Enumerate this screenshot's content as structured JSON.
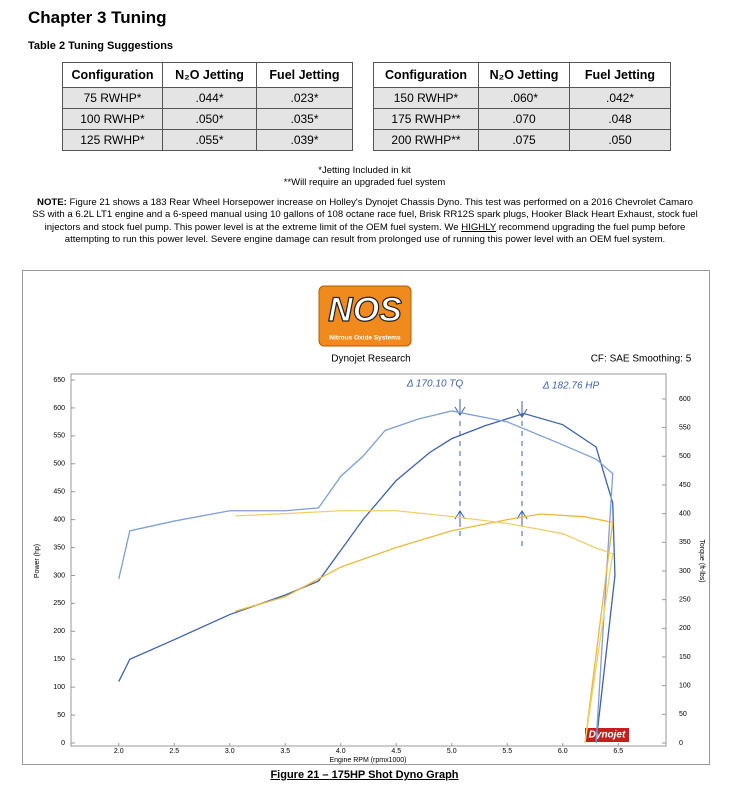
{
  "heading": "Chapter 3 Tuning",
  "table": {
    "title": "Table 2 Tuning Suggestions",
    "header": [
      "Configuration",
      "N₂O Jetting",
      "Fuel Jetting",
      "Configuration",
      "N₂O Jetting",
      "Fuel Jetting"
    ],
    "rows": [
      [
        "75 RWHP*",
        ".044*",
        ".023*",
        "150 RWHP*",
        ".060*",
        ".042*"
      ],
      [
        "100 RWHP*",
        ".050*",
        ".035*",
        "175 RWHP**",
        ".070",
        ".048"
      ],
      [
        "125 RWHP*",
        ".055*",
        ".039*",
        "200 RWHP**",
        ".075",
        ".050"
      ]
    ]
  },
  "footnotes": [
    "*Jetting Included in kit",
    "**Will require an upgraded fuel system"
  ],
  "note": {
    "label": "NOTE:",
    "text": "Figure 21 shows a 183 Rear Wheel Horsepower increase on Holley's Dynojet Chassis Dyno. This test was performed on a 2016 Chevrolet Camaro SS with a 6.2L LT1 engine and a 6-speed manual using 10 gallons of 108 octane race fuel, Brisk RR12S spark plugs, Hooker Black Heart Exhaust, stock fuel injectors and stock fuel pump. This power level is at the extreme limit of the OEM fuel system. We",
    "emphasis": "HIGHLY",
    "text_end": "recommend upgrading the fuel pump before attempting to run this power level. Severe engine damage can result from prolonged use of running this power level with an OEM fuel system."
  },
  "chart_data": {
    "type": "line",
    "logo_text": "NOS",
    "logo_subtext": "Nitrous Oxide Systems",
    "title": "Dynojet Research",
    "subtitle": "CF: SAE Smoothing: 5",
    "badge": "Dynojet",
    "xlabel": "Engine RPM (rpmx1000)",
    "ylabel": "Power (hp)",
    "y2label": "Torque (ft-lbs)",
    "annotations": [
      "Δ 170.10 TQ",
      "Δ 182.76 HP"
    ],
    "xlim": [
      1.57,
      6.93
    ],
    "xticks": [
      {
        "value": 2,
        "label": "2.0"
      },
      2.5,
      {
        "value": 3,
        "label": "3.0"
      },
      3.5,
      {
        "value": 4,
        "label": "4.0"
      },
      4.5,
      {
        "value": 5,
        "label": "5.0"
      },
      5.5,
      {
        "value": 6,
        "label": "6.0"
      },
      6.5
    ],
    "ylim": [
      0,
      650
    ],
    "yticks": [
      0,
      50,
      100,
      150,
      200,
      250,
      300,
      350,
      400,
      450,
      500,
      550,
      600,
      650
    ],
    "y2lim": [
      0,
      633
    ],
    "y2ticks": [
      0,
      50,
      100,
      150,
      200,
      250,
      300,
      350,
      400,
      450,
      500,
      550,
      600
    ],
    "series": [
      {
        "color": "#3d62ad",
        "x": [
          2.0,
          2.1,
          2.5,
          3.0,
          3.5,
          3.8,
          4.0,
          4.2,
          4.5,
          4.8,
          5.0,
          5.3,
          5.65,
          6.0,
          6.3,
          6.45,
          6.47,
          6.3
        ],
        "values": [
          110,
          150,
          185,
          230,
          265,
          290,
          345,
          400,
          470,
          520,
          545,
          568,
          590,
          570,
          530,
          430,
          300,
          0
        ]
      },
      {
        "color": "#7f9fd6",
        "axis": "y2",
        "x": [
          2.0,
          2.1,
          2.5,
          3.0,
          3.5,
          3.8,
          4.0,
          4.2,
          4.4,
          4.7,
          5.0,
          5.5,
          6.0,
          6.3,
          6.45,
          6.3
        ],
        "values": [
          286,
          370,
          387,
          405,
          405,
          410,
          465,
          500,
          545,
          565,
          579,
          560,
          520,
          495,
          470,
          0
        ]
      },
      {
        "color": "#e8b93a",
        "x": [
          3.05,
          3.5,
          4.0,
          4.5,
          5.0,
          5.5,
          5.8,
          6.2,
          6.45,
          6.2
        ],
        "values": [
          236,
          262,
          315,
          350,
          380,
          400,
          410,
          405,
          395,
          0
        ]
      },
      {
        "color": "#f0cf6a",
        "axis": "y2",
        "x": [
          3.05,
          3.5,
          4.0,
          4.5,
          5.0,
          5.5,
          6.0,
          6.3,
          6.45,
          6.2
        ],
        "values": [
          396,
          400,
          405,
          405,
          395,
          383,
          365,
          340,
          330,
          0
        ]
      }
    ]
  },
  "caption": "Figure 21 – 175HP Shot Dyno Graph"
}
